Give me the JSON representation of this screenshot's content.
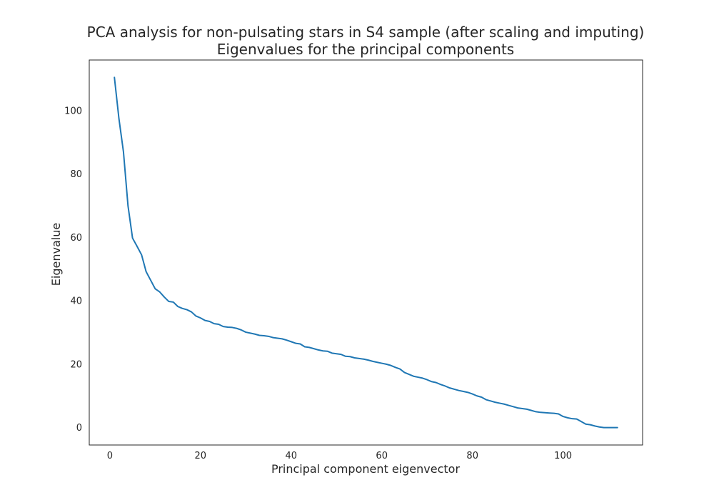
{
  "chart_data": {
    "type": "line",
    "title": [
      "PCA analysis for non-pulsating stars in S4 sample (after scaling and imputing)",
      "Eigenvalues for the principal components"
    ],
    "xlabel": "Principal component eigenvector",
    "ylabel": "Eigenvalue",
    "xlim": [
      -4.55,
      117.55
    ],
    "ylim": [
      -5.5,
      116
    ],
    "xticks": [
      0,
      20,
      40,
      60,
      80,
      100
    ],
    "yticks": [
      0,
      20,
      40,
      60,
      80,
      100
    ],
    "grid": false,
    "line_color": "#1f77b4",
    "series": [
      {
        "x": [
          1,
          2,
          3,
          4,
          5,
          6,
          7,
          8,
          9,
          10,
          11,
          12,
          13,
          14,
          15,
          16,
          17,
          18,
          19,
          20,
          21,
          22,
          23,
          24,
          25,
          26,
          27,
          28,
          29,
          30,
          31,
          32,
          33,
          34,
          35,
          36,
          37,
          38,
          39,
          40,
          41,
          42,
          43,
          44,
          45,
          46,
          47,
          48,
          49,
          50,
          51,
          52,
          53,
          54,
          55,
          56,
          57,
          58,
          59,
          60,
          61,
          62,
          63,
          64,
          65,
          66,
          67,
          68,
          69,
          70,
          71,
          72,
          73,
          74,
          75,
          76,
          77,
          78,
          79,
          80,
          81,
          82,
          83,
          84,
          85,
          86,
          87,
          88,
          89,
          90,
          91,
          92,
          93,
          94,
          95,
          96,
          97,
          98,
          99,
          100,
          101,
          102,
          103,
          104,
          105,
          106,
          107,
          108,
          109,
          110,
          111,
          112
        ],
        "values": [
          110.5,
          97.5,
          87,
          70,
          59.8,
          57.2,
          54.5,
          49.2,
          46.5,
          43.8,
          42.8,
          41.2,
          39.8,
          39.6,
          38.2,
          37.6,
          37.2,
          36.5,
          35.2,
          34.6,
          33.8,
          33.5,
          32.8,
          32.6,
          31.9,
          31.7,
          31.6,
          31.3,
          30.8,
          30.1,
          29.8,
          29.5,
          29.1,
          29,
          28.8,
          28.4,
          28.2,
          28,
          27.6,
          27.1,
          26.6,
          26.4,
          25.5,
          25.3,
          24.9,
          24.5,
          24.2,
          24.1,
          23.5,
          23.3,
          23.1,
          22.5,
          22.4,
          22,
          21.8,
          21.6,
          21.3,
          20.9,
          20.6,
          20.3,
          20,
          19.6,
          19,
          18.5,
          17.4,
          16.8,
          16.2,
          15.9,
          15.6,
          15.1,
          14.5,
          14.2,
          13.6,
          13.1,
          12.5,
          12.1,
          11.7,
          11.4,
          11.1,
          10.6,
          10,
          9.6,
          8.8,
          8.4,
          8,
          7.7,
          7.4,
          7,
          6.6,
          6.2,
          6,
          5.8,
          5.4,
          5,
          4.8,
          4.7,
          4.6,
          4.5,
          4.3,
          3.5,
          3.1,
          2.8,
          2.7,
          1.9,
          1.1,
          0.9,
          0.5,
          0.2,
          0,
          0,
          0,
          0
        ]
      }
    ]
  }
}
